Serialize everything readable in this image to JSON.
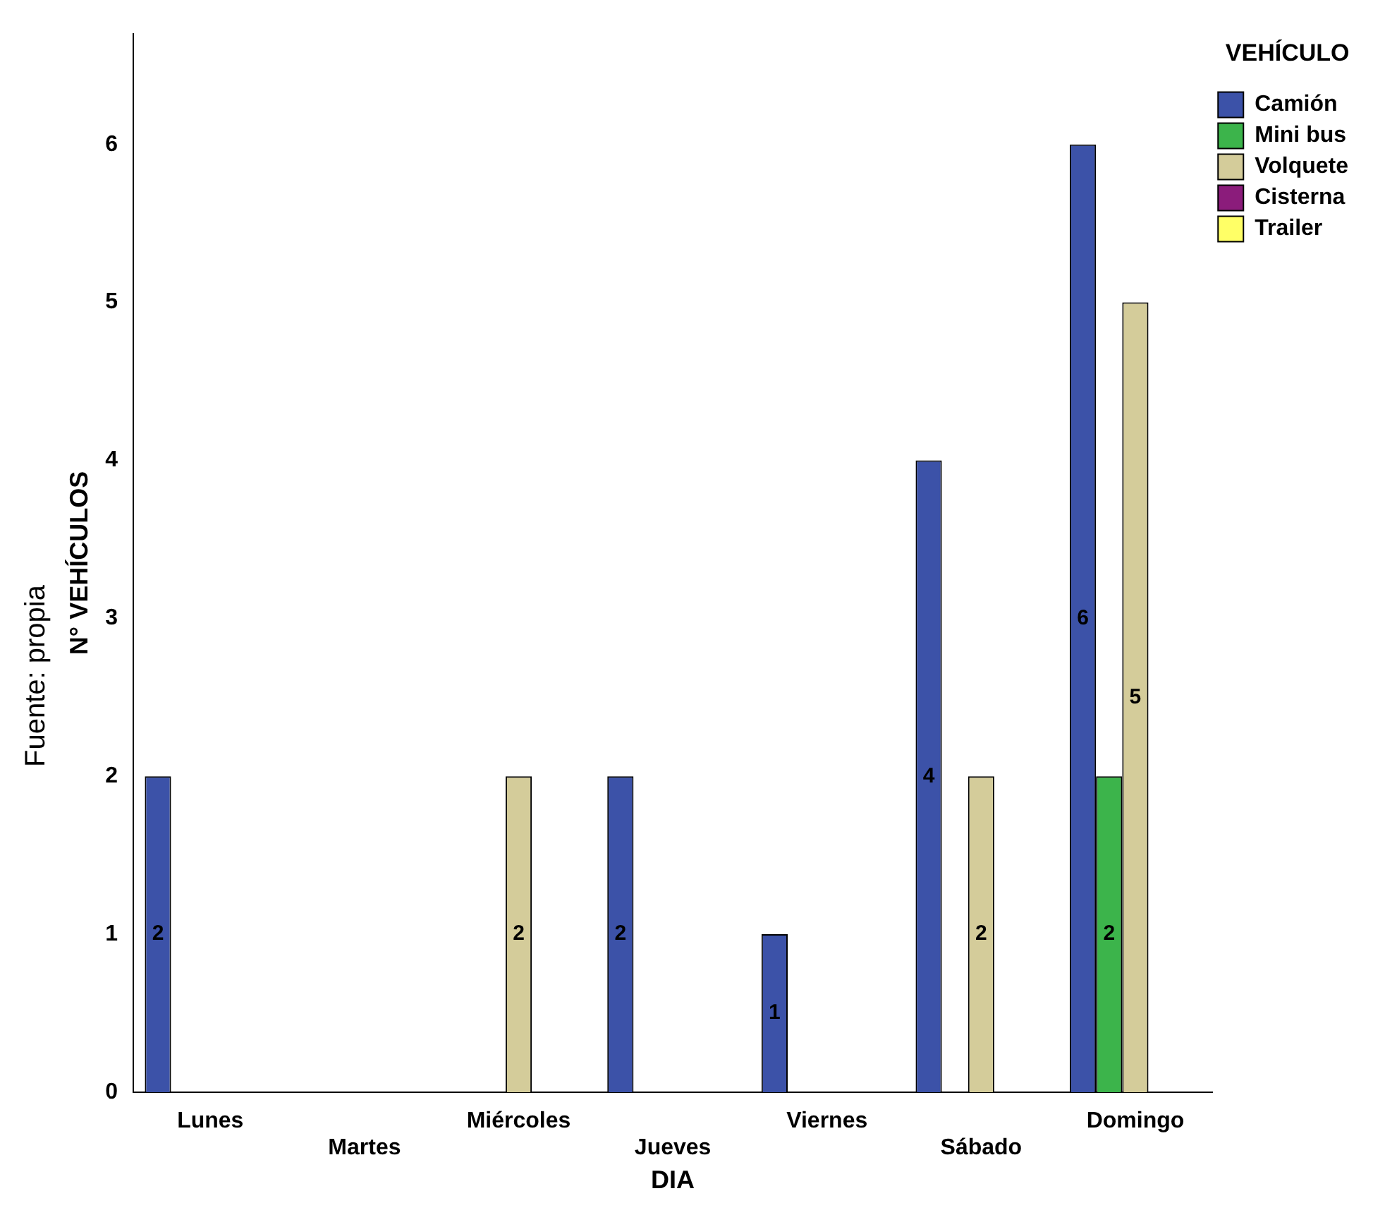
{
  "chart_data": {
    "type": "bar",
    "xlabel": "DIA",
    "ylabel": "N° VEHÍCULOS",
    "legend_title": "VEHÍCULO",
    "annotations": [
      "Fuente: propia"
    ],
    "categories": [
      "Lunes",
      "Martes",
      "Miércoles",
      "Jueves",
      "Viernes",
      "Sábado",
      "Domingo"
    ],
    "series": [
      {
        "name": "Camión",
        "color": "#3c52a8",
        "values": [
          2,
          null,
          null,
          2,
          1,
          4,
          6
        ]
      },
      {
        "name": "Mini bus",
        "color": "#3cb44b",
        "values": [
          null,
          null,
          null,
          null,
          null,
          null,
          2
        ]
      },
      {
        "name": "Volquete",
        "color": "#d4cc9a",
        "values": [
          null,
          null,
          2,
          null,
          null,
          2,
          5
        ]
      },
      {
        "name": "Cisterna",
        "color": "#8b1c7b",
        "values": [
          null,
          null,
          null,
          null,
          null,
          null,
          null
        ]
      },
      {
        "name": "Trailer",
        "color": "#ffff66",
        "values": [
          null,
          null,
          null,
          null,
          null,
          null,
          null
        ]
      }
    ],
    "ylim": [
      0,
      6.7
    ],
    "yticks": [
      0,
      1,
      2,
      3,
      4,
      5,
      6
    ],
    "grid": false,
    "legend": "top right",
    "data_labels": true
  }
}
